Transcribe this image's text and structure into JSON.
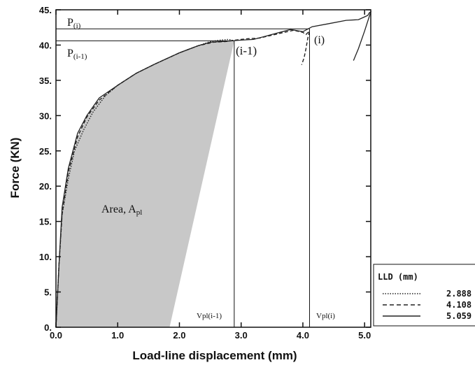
{
  "chart_data": {
    "type": "line",
    "xlabel": "Load-line displacement (mm)",
    "ylabel": "Force (KN)",
    "xlim": [
      0,
      5.1
    ],
    "ylim": [
      0,
      45
    ],
    "x_ticks": [
      "0.0",
      "1.0",
      "2.0",
      "3.0",
      "4.0",
      "5.0"
    ],
    "y_ticks": [
      "0.",
      "5.",
      "10.",
      "15.",
      "20.",
      "25.",
      "30.",
      "35.",
      "40.",
      "45."
    ],
    "x_tick_values": [
      0,
      1,
      2,
      3,
      4,
      5
    ],
    "y_tick_values": [
      0,
      5,
      10,
      15,
      20,
      25,
      30,
      35,
      40,
      45
    ],
    "legend": {
      "title": "LLD (mm)",
      "position": "bottom-right, outside plot"
    },
    "series": [
      {
        "name": "2.888",
        "style": "dotted",
        "x": [
          0,
          0.05,
          0.1,
          0.2,
          0.3,
          0.45,
          0.6,
          0.8,
          1.0,
          1.3,
          1.6,
          2.0,
          2.3,
          2.5,
          2.65,
          2.8,
          2.888
        ],
        "y": [
          0,
          9,
          16,
          21,
          25,
          28,
          30.5,
          32.8,
          34.3,
          36,
          37.3,
          38.9,
          39.9,
          40.5,
          40.7,
          40.8,
          40.6
        ]
      },
      {
        "name": "4.108",
        "style": "dashed",
        "x": [
          0,
          0.05,
          0.1,
          0.2,
          0.35,
          0.5,
          0.7,
          1.0,
          1.3,
          1.6,
          2.0,
          2.3,
          2.55,
          2.75,
          2.9,
          3.1,
          3.3,
          3.6,
          3.85,
          4.0,
          4.05,
          4.108,
          4.08,
          4.05,
          4.02,
          3.98
        ],
        "y": [
          0,
          9,
          16,
          22,
          27,
          29.8,
          32.2,
          34.3,
          36,
          37.3,
          38.9,
          39.9,
          40.4,
          40.5,
          40.7,
          40.9,
          41,
          41.6,
          42.1,
          41.8,
          41.5,
          42,
          41,
          39.5,
          38.2,
          37.2
        ]
      },
      {
        "name": "5.059",
        "style": "solid",
        "x": [
          0,
          0.05,
          0.1,
          0.2,
          0.35,
          0.5,
          0.7,
          1.0,
          1.3,
          1.6,
          2.0,
          2.3,
          2.5,
          2.7,
          2.85,
          3.0,
          3.2,
          3.5,
          3.8,
          4.0,
          4.15,
          4.4,
          4.7,
          4.9,
          5.0,
          5.05,
          5.08,
          5.1,
          5.0,
          4.9,
          4.82
        ],
        "y": [
          0,
          9,
          17,
          22.5,
          27.5,
          30,
          32.5,
          34.3,
          36,
          37.3,
          38.9,
          39.9,
          40.4,
          40.5,
          40.6,
          40.7,
          40.8,
          41.5,
          42.2,
          41.9,
          42.6,
          43,
          43.5,
          43.6,
          44,
          44.2,
          44.6,
          44.7,
          42,
          39.5,
          37.8
        ]
      }
    ],
    "shaded_area": {
      "polygon_x": [
        0,
        0.05,
        0.1,
        0.2,
        0.35,
        0.5,
        0.7,
        1.0,
        1.3,
        1.6,
        2.0,
        2.3,
        2.5,
        2.65,
        2.8,
        2.888,
        1.84
      ],
      "polygon_y": [
        0,
        9,
        16,
        22,
        27,
        29.8,
        32.2,
        34.3,
        36,
        37.3,
        38.9,
        39.9,
        40.4,
        40.6,
        40.6,
        40.6,
        0
      ],
      "color": "#c8c8c8"
    },
    "reference_lines": {
      "horizontal": [
        {
          "y": 42.3,
          "x_to": 4.108,
          "label": "P",
          "subscript": "(i)"
        },
        {
          "y": 40.6,
          "x_to": 2.888,
          "label": "P",
          "subscript": "(i-1)"
        }
      ],
      "vertical": [
        {
          "x": 2.888,
          "y_to": 40.6,
          "label": "Vpl(i-1)"
        },
        {
          "x": 4.108,
          "y_to": 42.3,
          "label": "Vpl(i)"
        }
      ]
    },
    "annotations": {
      "point_i_minus_1": "(i-1)",
      "point_i": "(i)",
      "area_label": "Area, A",
      "area_subscript": "pl"
    }
  }
}
